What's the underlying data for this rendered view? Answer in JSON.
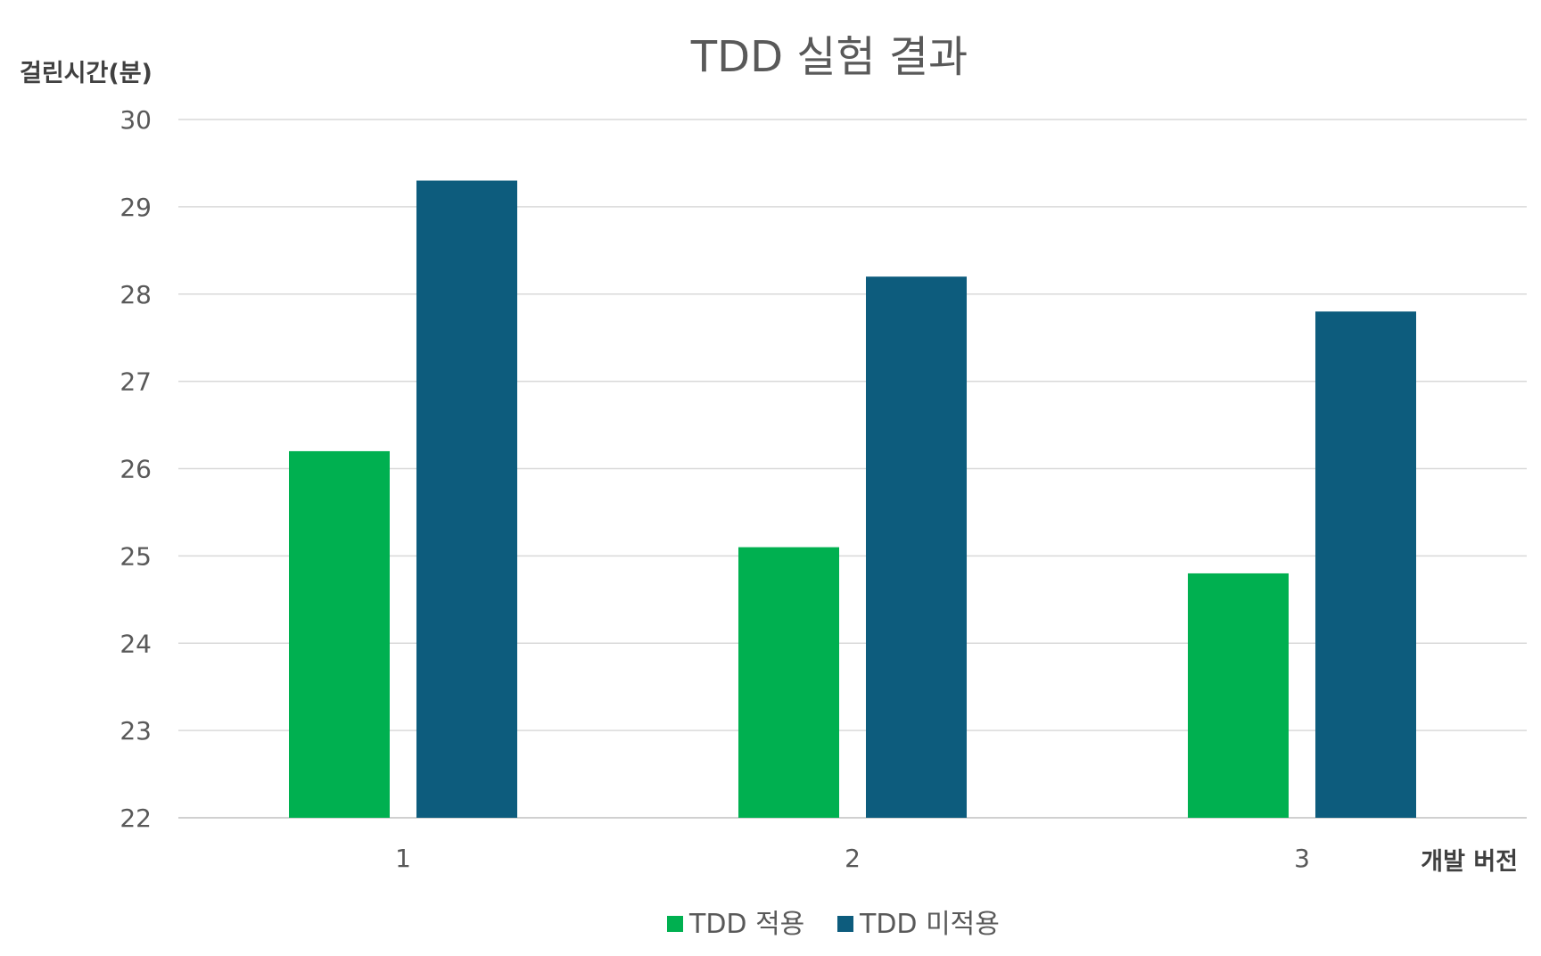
{
  "chart_data": {
    "type": "bar",
    "title": "TDD 실험 결과",
    "xlabel": "개발 버전",
    "ylabel": "걸린시간(분)",
    "categories": [
      "1",
      "2",
      "3"
    ],
    "series": [
      {
        "name": "TDD 적용",
        "color": "#00b050",
        "values": [
          26.2,
          25.1,
          24.8
        ]
      },
      {
        "name": "TDD 미적용",
        "color": "#0d5c7d",
        "values": [
          29.3,
          28.2,
          27.8
        ]
      }
    ],
    "ylim": [
      22,
      30
    ],
    "yticks": [
      "22",
      "23",
      "24",
      "25",
      "26",
      "27",
      "28",
      "29",
      "30"
    ],
    "grid": true,
    "legend_position": "bottom"
  }
}
